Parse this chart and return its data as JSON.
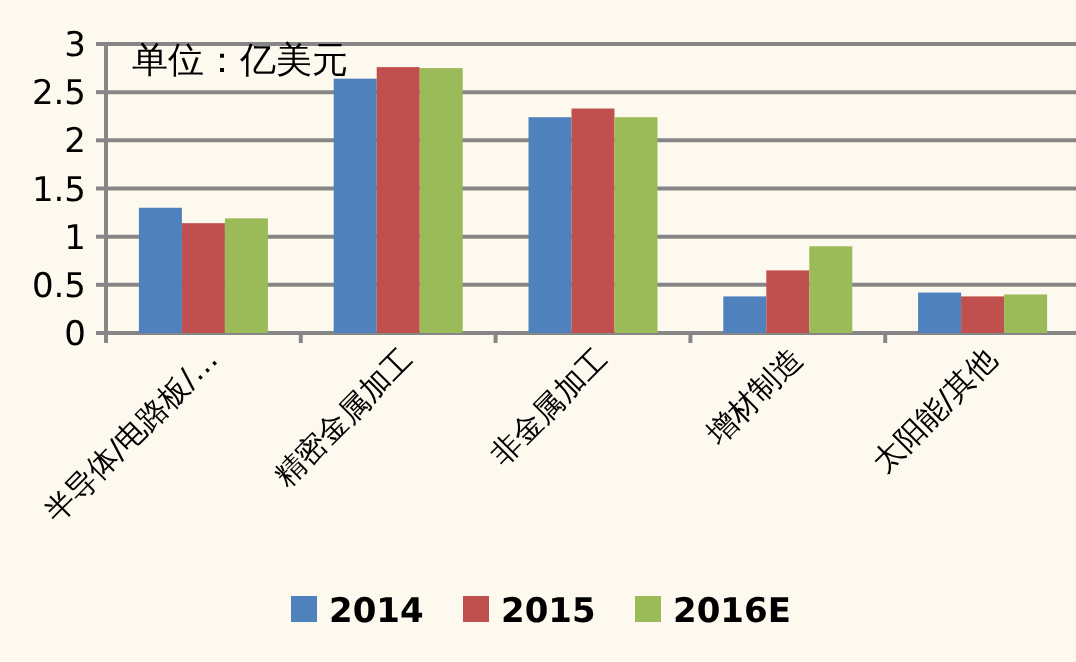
{
  "chart_data": {
    "type": "bar",
    "annotations": [
      "单位：亿美元"
    ],
    "categories": [
      "半导体/电路板/…",
      "精密金属加工",
      "非金属加工",
      "增材制造",
      "太阳能/其他"
    ],
    "series": [
      {
        "name": "2014",
        "color": "#4f81bd",
        "values": [
          1.3,
          2.64,
          2.24,
          0.38,
          0.42
        ]
      },
      {
        "name": "2015",
        "color": "#c0504d",
        "values": [
          1.14,
          2.76,
          2.33,
          0.65,
          0.38
        ]
      },
      {
        "name": "2016E",
        "color": "#9bbb59",
        "values": [
          1.19,
          2.75,
          2.24,
          0.9,
          0.4
        ]
      }
    ],
    "ylim": [
      0,
      3
    ],
    "yticks": [
      0,
      0.5,
      1,
      1.5,
      2,
      2.5,
      3
    ],
    "grid": "y",
    "legend": "bottom"
  }
}
